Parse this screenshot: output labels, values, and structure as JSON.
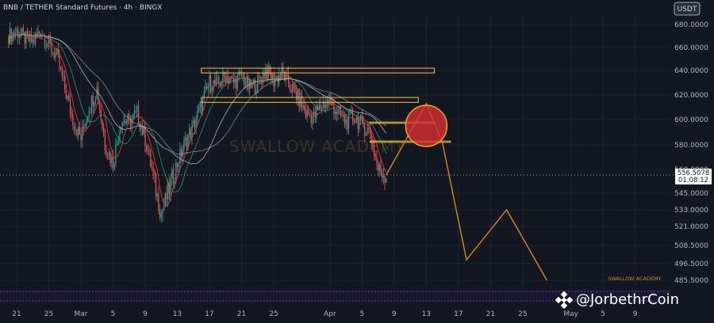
{
  "chart_data": {
    "type": "candlestick",
    "title": "BNB / TETHER Standard Futures · 4h · BINGX",
    "currency": "USDT",
    "y_ticks": [
      "680.0000",
      "660.0000",
      "640.0000",
      "620.0000",
      "600.0000",
      "580.0000",
      "560.0000",
      "545.0000",
      "533.0000",
      "521.0000",
      "508.5000",
      "496.5000",
      "485.5000"
    ],
    "y_tick_values": [
      680,
      660,
      640,
      620,
      600,
      580,
      560,
      545,
      533,
      521,
      508.5,
      496.5,
      485.5
    ],
    "x_ticks": [
      "21",
      "25",
      "Mar",
      "5",
      "9",
      "13",
      "17",
      "21",
      "25",
      "Apr",
      "5",
      "9",
      "13",
      "17",
      "21",
      "25",
      "May",
      "5",
      "9"
    ],
    "x_tick_values": [
      "2025-02-21",
      "2025-02-25",
      "2025-03-01",
      "2025-03-05",
      "2025-03-09",
      "2025-03-13",
      "2025-03-17",
      "2025-03-21",
      "2025-03-25",
      "2025-04-01",
      "2025-04-05",
      "2025-04-09",
      "2025-04-13",
      "2025-04-17",
      "2025-04-21",
      "2025-04-25",
      "2025-05-01",
      "2025-05-05",
      "2025-05-09"
    ],
    "current_price": "556.5078",
    "countdown": "01:08:12",
    "price_path": [
      [
        "2025-02-20",
        670
      ],
      [
        "2025-02-21",
        674
      ],
      [
        "2025-02-22",
        668
      ],
      [
        "2025-02-23",
        665
      ],
      [
        "2025-02-24",
        675
      ],
      [
        "2025-02-25",
        662
      ],
      [
        "2025-02-26",
        652
      ],
      [
        "2025-02-27",
        625
      ],
      [
        "2025-02-28",
        600
      ],
      [
        "2025-03-01",
        585
      ],
      [
        "2025-03-02",
        610
      ],
      [
        "2025-03-03",
        625
      ],
      [
        "2025-03-04",
        580
      ],
      [
        "2025-03-05",
        565
      ],
      [
        "2025-03-06",
        600
      ],
      [
        "2025-03-07",
        598
      ],
      [
        "2025-03-08",
        605
      ],
      [
        "2025-03-09",
        585
      ],
      [
        "2025-03-10",
        555
      ],
      [
        "2025-03-11",
        530
      ],
      [
        "2025-03-12",
        548
      ],
      [
        "2025-03-13",
        565
      ],
      [
        "2025-03-14",
        582
      ],
      [
        "2025-03-15",
        595
      ],
      [
        "2025-03-16",
        612
      ],
      [
        "2025-03-17",
        630
      ],
      [
        "2025-03-18",
        628
      ],
      [
        "2025-03-19",
        636
      ],
      [
        "2025-03-20",
        630
      ],
      [
        "2025-03-21",
        636
      ],
      [
        "2025-03-22",
        625
      ],
      [
        "2025-03-23",
        630
      ],
      [
        "2025-03-24",
        640
      ],
      [
        "2025-03-25",
        632
      ],
      [
        "2025-03-26",
        638
      ],
      [
        "2025-03-27",
        628
      ],
      [
        "2025-03-28",
        618
      ],
      [
        "2025-03-29",
        605
      ],
      [
        "2025-03-30",
        602
      ],
      [
        "2025-03-31",
        612
      ],
      [
        "2025-04-01",
        615
      ],
      [
        "2025-04-02",
        605
      ],
      [
        "2025-04-03",
        598
      ],
      [
        "2025-04-04",
        602
      ],
      [
        "2025-04-05",
        596
      ],
      [
        "2025-04-06",
        590
      ],
      [
        "2025-04-07",
        560
      ],
      [
        "2025-04-08",
        556.5
      ]
    ],
    "projection_path": [
      [
        "2025-04-08",
        556.5
      ],
      [
        "2025-04-13",
        613
      ],
      [
        "2025-04-15",
        582
      ],
      [
        "2025-04-18",
        499
      ],
      [
        "2025-04-23",
        533
      ],
      [
        "2025-04-28",
        485.5
      ]
    ],
    "zones": [
      {
        "from": "2025-03-16",
        "to": "2025-04-14",
        "low": 638,
        "high": 642,
        "color": "#f5c542"
      },
      {
        "from": "2025-03-16",
        "to": "2025-04-12",
        "low": 614,
        "high": 618,
        "color": "#f5c542"
      },
      {
        "from": "2025-04-06",
        "to": "2025-04-14",
        "low": 597,
        "high": 598,
        "color": "#f5c542"
      },
      {
        "from": "2025-04-06",
        "to": "2025-04-16",
        "low": 582,
        "high": 583,
        "color": "#f5c542"
      }
    ],
    "circle_center": [
      "2025-04-13",
      595
    ],
    "watermark": "SWALLOW ACADEMY",
    "small_watermark": "SWALLOW ACADEMY",
    "credit": "@JorbethrCoin",
    "colors": {
      "background": "#131722",
      "up": "#26a69a",
      "down": "#ef5350",
      "zone": "#f5c542",
      "projection": "#d4891a",
      "circle_fill": "#d63031",
      "ma_red": "#e0383e",
      "ma_green": "#2bbf6e",
      "ribbon": "#cfcfcf",
      "oscillator": "#7e57c2"
    }
  }
}
